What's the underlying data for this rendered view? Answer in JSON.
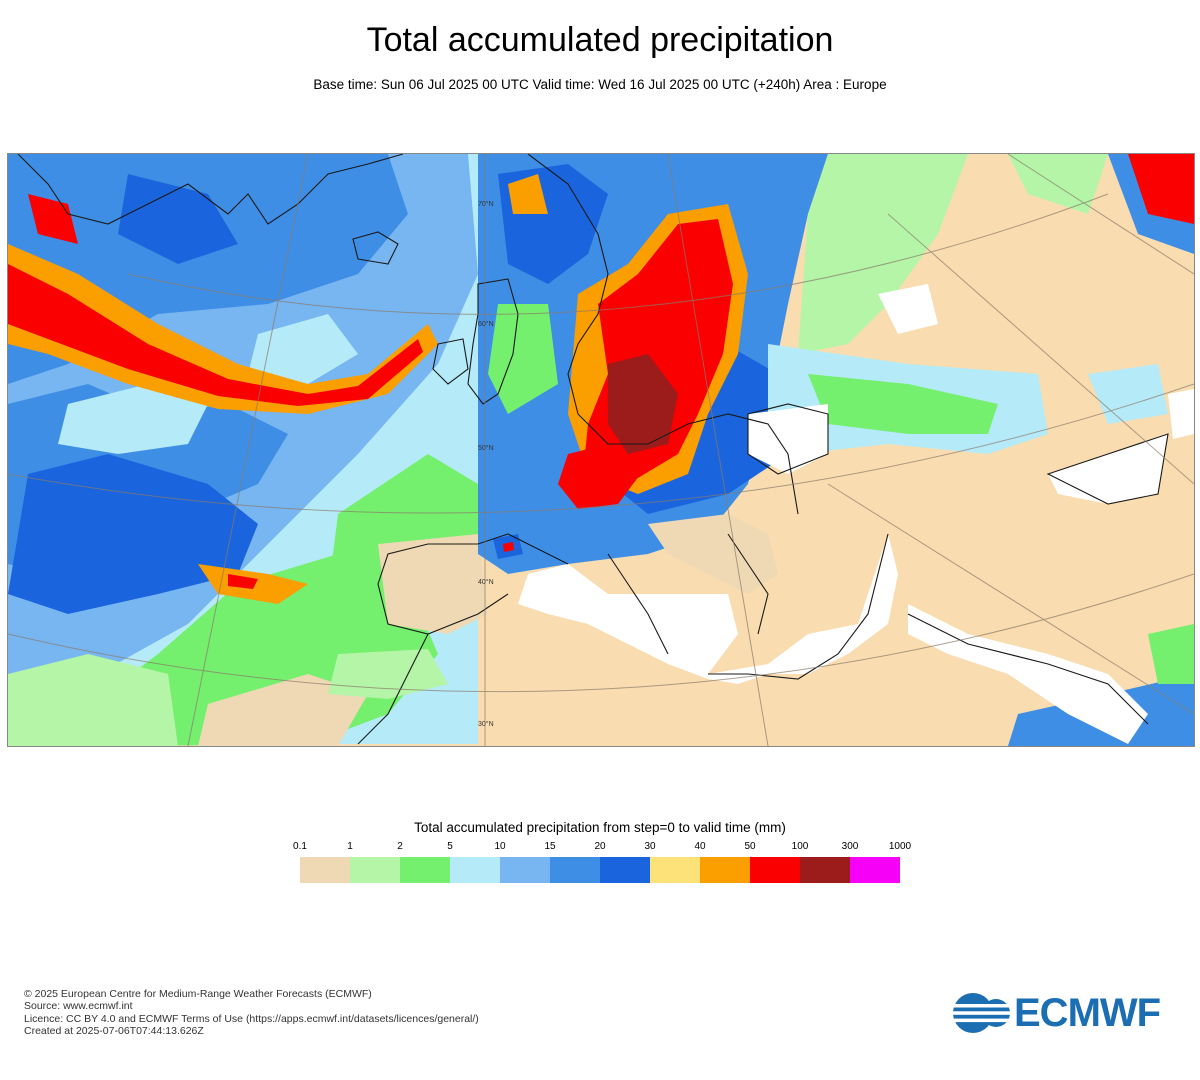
{
  "header": {
    "title": "Total accumulated precipitation",
    "subtitle": "Base time: Sun 06 Jul 2025 00 UTC Valid time: Wed 16 Jul 2025 00 UTC (+240h) Area : Europe"
  },
  "legend": {
    "title": "Total accumulated precipitation from step=0 to valid time (mm)",
    "ticks": [
      "0.1",
      "1",
      "2",
      "5",
      "10",
      "15",
      "20",
      "30",
      "40",
      "50",
      "100",
      "300",
      "1000"
    ],
    "colors": [
      "#efd9b4",
      "#b5f5a8",
      "#75ef6e",
      "#b5ebf8",
      "#78b6f2",
      "#3f8ee6",
      "#1a64dd",
      "#fde27a",
      "#fb9e00",
      "#fa0000",
      "#9c1c1c",
      "#f700f8"
    ]
  },
  "footer": {
    "lines": [
      "© 2025 European Centre for Medium-Range Weather Forecasts (ECMWF)",
      "Source: www.ecmwf.int",
      "Licence: CC BY 4.0 and ECMWF Terms of Use (https://apps.ecmwf.int/datasets/licences/general/)",
      "Created at 2025-07-06T07:44:13.626Z"
    ]
  },
  "map": {
    "lat_labels": [
      "70°N",
      "60°N",
      "50°N",
      "40°N",
      "30°N"
    ],
    "colors": {
      "land_dry": "#f9dcb0",
      "sea_dry": "#ffffff"
    }
  },
  "logo": {
    "text": "ECMWF",
    "color": "#1b6eb2"
  }
}
